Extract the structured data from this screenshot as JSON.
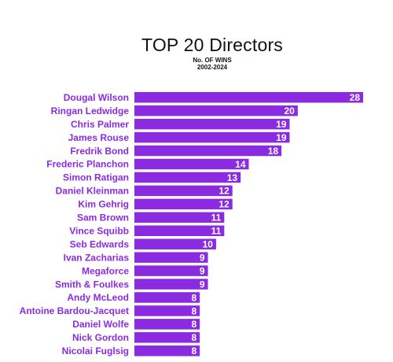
{
  "chart_data": {
    "type": "bar",
    "orientation": "horizontal",
    "title": "TOP 20 Directors",
    "subtitle_line1": "No. OF WINS",
    "subtitle_line2": "2002-2024",
    "categories": [
      "Dougal Wilson",
      "Ringan Ledwidge",
      "Chris Palmer",
      "James Rouse",
      "Fredrik Bond",
      "Frederic Planchon",
      "Simon Ratigan",
      "Daniel Kleinman",
      "Kim Gehrig",
      "Sam Brown",
      "Vince Squibb",
      "Seb Edwards",
      "Ivan Zacharias",
      "Megaforce",
      "Smith & Foulkes",
      "Andy McLeod",
      "Antoine Bardou-Jacquet",
      "Daniel Wolfe",
      "Nick Gordon",
      "Nicolai Fuglsig"
    ],
    "values": [
      28,
      20,
      19,
      19,
      18,
      14,
      13,
      12,
      12,
      11,
      11,
      10,
      9,
      9,
      9,
      8,
      8,
      8,
      8,
      8
    ],
    "colors": {
      "bar": "#8a2be2",
      "label": "#8a2be2",
      "value_text": "#ffffff",
      "title": "#111111"
    },
    "xlim": [
      0,
      28
    ],
    "grid": false,
    "legend": "none"
  }
}
